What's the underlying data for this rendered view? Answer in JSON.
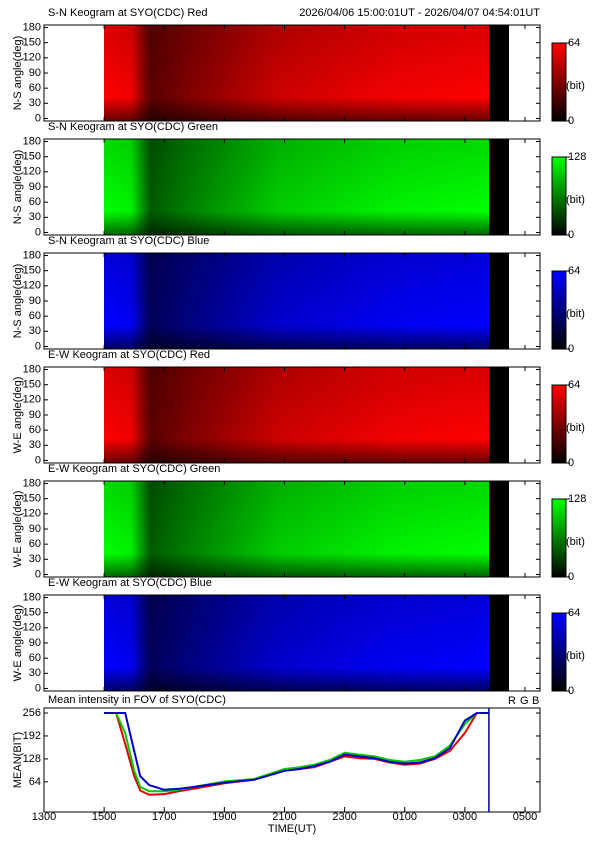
{
  "header": {
    "time_range": "2026/04/06 15:00:01UT - 2026/04/07 04:54:01UT"
  },
  "chart_data": [
    {
      "type": "keogram",
      "title": "S-N Keogram at SYO(CDC) Red",
      "y_label": "N-S angle(deg)",
      "color": "#ff0000",
      "ylim": [
        -5,
        185
      ],
      "yticks": [
        0,
        30,
        60,
        90,
        120,
        150,
        180
      ],
      "colorbar_ticks": [
        0,
        64
      ],
      "colorbar_unit": "(bit)"
    },
    {
      "type": "keogram",
      "title": "S-N Keogram at SYO(CDC) Green",
      "y_label": "N-S angle(deg)",
      "color": "#00ff00",
      "ylim": [
        -5,
        185
      ],
      "yticks": [
        0,
        30,
        60,
        90,
        120,
        150,
        180
      ],
      "colorbar_ticks": [
        0,
        128
      ],
      "colorbar_unit": "(bit)"
    },
    {
      "type": "keogram",
      "title": "S-N Keogram at SYO(CDC) Blue",
      "y_label": "N-S angle(deg)",
      "color": "#0000ff",
      "ylim": [
        -5,
        185
      ],
      "yticks": [
        0,
        30,
        60,
        90,
        120,
        150,
        180
      ],
      "colorbar_ticks": [
        0,
        64
      ],
      "colorbar_unit": "(bit)"
    },
    {
      "type": "keogram",
      "title": "E-W Keogram at SYO(CDC) Red",
      "y_label": "W-E angle(deg)",
      "color": "#ff0000",
      "ylim": [
        -5,
        185
      ],
      "yticks": [
        0,
        30,
        60,
        90,
        120,
        150,
        180
      ],
      "colorbar_ticks": [
        0,
        64
      ],
      "colorbar_unit": "(bit)"
    },
    {
      "type": "keogram",
      "title": "E-W Keogram at SYO(CDC) Green",
      "y_label": "W-E angle(deg)",
      "color": "#00ff00",
      "ylim": [
        -5,
        185
      ],
      "yticks": [
        0,
        30,
        60,
        90,
        120,
        150,
        180
      ],
      "colorbar_ticks": [
        0,
        128
      ],
      "colorbar_unit": "(bit)"
    },
    {
      "type": "keogram",
      "title": "E-W Keogram at SYO(CDC) Blue",
      "y_label": "W-E angle(deg)",
      "color": "#0000ff",
      "ylim": [
        -5,
        185
      ],
      "yticks": [
        0,
        30,
        60,
        90,
        120,
        150,
        180
      ],
      "colorbar_ticks": [
        0,
        64
      ],
      "colorbar_unit": "(bit)"
    },
    {
      "type": "line",
      "title": "Mean intensity in FOV of SYO(CDC)",
      "x_label": "TIME(UT)",
      "y_label": "MEAN(BIT)",
      "xlim": [
        13,
        29.5
      ],
      "xticks": [
        {
          "value": 13,
          "label": "1300"
        },
        {
          "value": 15,
          "label": "1500"
        },
        {
          "value": 17,
          "label": "1700"
        },
        {
          "value": 19,
          "label": "1900"
        },
        {
          "value": 21,
          "label": "2100"
        },
        {
          "value": 23,
          "label": "2300"
        },
        {
          "value": 25,
          "label": "0100"
        },
        {
          "value": 27,
          "label": "0300"
        },
        {
          "value": 29,
          "label": "0500"
        }
      ],
      "ylim": [
        -20,
        270
      ],
      "yticks": [
        64,
        128,
        192,
        256
      ],
      "x": [
        15.0,
        15.4,
        15.7,
        16.0,
        16.2,
        16.5,
        17.0,
        17.5,
        18.0,
        19.0,
        20.0,
        21.0,
        21.5,
        22.0,
        22.5,
        23.0,
        23.5,
        24.0,
        24.5,
        25.0,
        25.5,
        26.0,
        26.5,
        27.0,
        27.4,
        27.8
      ],
      "series": [
        {
          "name": "R",
          "color": "#e00000",
          "values": [
            256,
            256,
            170,
            80,
            40,
            28,
            30,
            38,
            45,
            60,
            70,
            95,
            100,
            105,
            120,
            135,
            130,
            128,
            118,
            112,
            115,
            128,
            150,
            200,
            256,
            256
          ]
        },
        {
          "name": "G",
          "color": "#00c800",
          "values": [
            256,
            256,
            200,
            95,
            50,
            38,
            38,
            42,
            50,
            65,
            72,
            100,
            105,
            112,
            125,
            145,
            140,
            135,
            125,
            120,
            125,
            135,
            165,
            225,
            256,
            256
          ]
        },
        {
          "name": "B",
          "color": "#0000c8",
          "values": [
            256,
            256,
            256,
            150,
            80,
            55,
            42,
            45,
            50,
            62,
            70,
            95,
            100,
            108,
            120,
            140,
            135,
            130,
            120,
            115,
            118,
            130,
            158,
            235,
            256,
            256
          ]
        }
      ],
      "vline": {
        "x": 27.8,
        "color": "#0000aa"
      }
    }
  ]
}
